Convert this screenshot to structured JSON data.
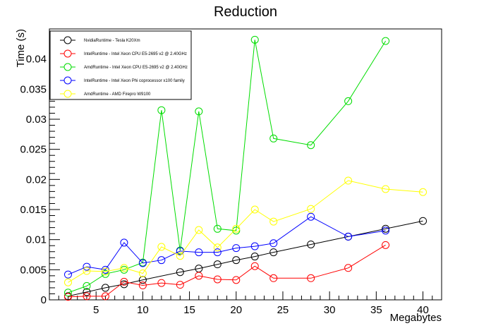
{
  "chart_data": {
    "type": "line",
    "title": "Reduction",
    "xlabel": "Megabytes",
    "ylabel": "Time (s)",
    "xlim": [
      0,
      42
    ],
    "ylim": [
      0,
      0.045
    ],
    "x_ticks": [
      5,
      10,
      15,
      20,
      25,
      30,
      35,
      40
    ],
    "x_tick_labels": [
      "5",
      "10",
      "15",
      "20",
      "25",
      "30",
      "35",
      "40"
    ],
    "y_ticks": [
      0,
      0.005,
      0.01,
      0.015,
      0.02,
      0.025,
      0.03,
      0.035,
      0.04
    ],
    "y_tick_labels": [
      "0",
      "0.005",
      "0.01",
      "0.015",
      "0.02",
      "0.025",
      "0.03",
      "0.035",
      "0.04"
    ],
    "grid": false,
    "legend_position": "top-left",
    "series": [
      {
        "name": "NvidiaRuntime - Tesla K20Xm",
        "color": "#000000",
        "points": [
          [
            2,
            0.0006
          ],
          [
            4,
            0.0013
          ],
          [
            6,
            0.002
          ],
          [
            8,
            0.0026
          ],
          [
            10,
            0.0033
          ],
          [
            14,
            0.0046
          ],
          [
            16,
            0.0052
          ],
          [
            18,
            0.0059
          ],
          [
            20,
            0.0066
          ],
          [
            22,
            0.0072
          ],
          [
            24,
            0.0079
          ],
          [
            28,
            0.0092
          ],
          [
            32,
            0.0105
          ],
          [
            36,
            0.0118
          ],
          [
            40,
            0.0131
          ]
        ]
      },
      {
        "name": "IntelRuntime - Intel Xeon CPU E5-2695 v2 @ 2.40GHz",
        "color": "#ff0000",
        "points": [
          [
            2,
            0.0005
          ],
          [
            4,
            0.0006
          ],
          [
            6,
            0.0006
          ],
          [
            8,
            0.003
          ],
          [
            10,
            0.0024
          ],
          [
            12,
            0.0028
          ],
          [
            14,
            0.0025
          ],
          [
            16,
            0.004
          ],
          [
            18,
            0.0034
          ],
          [
            20,
            0.0033
          ],
          [
            22,
            0.0056
          ],
          [
            24,
            0.0036
          ],
          [
            28,
            0.0036
          ],
          [
            32,
            0.0053
          ],
          [
            36,
            0.0091
          ]
        ]
      },
      {
        "name": "AmdRuntime - Intel Xeon CPU E5-2695 v2 @ 2.40GHz",
        "color": "#00dd00",
        "points": [
          [
            2,
            0.0012
          ],
          [
            4,
            0.0023
          ],
          [
            6,
            0.0043
          ],
          [
            8,
            0.005
          ],
          [
            10,
            0.0062
          ],
          [
            12,
            0.0315
          ],
          [
            14,
            0.0082
          ],
          [
            16,
            0.0313
          ],
          [
            18,
            0.0118
          ],
          [
            20,
            0.0115
          ],
          [
            22,
            0.0432
          ],
          [
            24,
            0.0268
          ],
          [
            28,
            0.0257
          ],
          [
            32,
            0.033
          ],
          [
            36,
            0.043
          ]
        ]
      },
      {
        "name": "IntelRuntime - Intel Xeon Phi coprocessor x100 family",
        "color": "#0000ff",
        "points": [
          [
            2,
            0.0042
          ],
          [
            4,
            0.0055
          ],
          [
            6,
            0.005
          ],
          [
            8,
            0.0095
          ],
          [
            10,
            0.0061
          ],
          [
            12,
            0.0066
          ],
          [
            14,
            0.0081
          ],
          [
            16,
            0.0079
          ],
          [
            18,
            0.0079
          ],
          [
            20,
            0.0086
          ],
          [
            22,
            0.0089
          ],
          [
            24,
            0.0094
          ],
          [
            28,
            0.0138
          ],
          [
            32,
            0.0105
          ],
          [
            36,
            0.0115
          ]
        ]
      },
      {
        "name": "AmdRuntime - AMD Firepro W9100",
        "color": "#ffff00",
        "points": [
          [
            2,
            0.0029
          ],
          [
            4,
            0.0048
          ],
          [
            6,
            0.0047
          ],
          [
            8,
            0.0053
          ],
          [
            10,
            0.0044
          ],
          [
            12,
            0.0088
          ],
          [
            14,
            0.0073
          ],
          [
            16,
            0.0116
          ],
          [
            18,
            0.0087
          ],
          [
            20,
            0.0118
          ],
          [
            22,
            0.015
          ],
          [
            24,
            0.013
          ],
          [
            28,
            0.0151
          ],
          [
            32,
            0.0198
          ],
          [
            36,
            0.0184
          ],
          [
            40,
            0.0179
          ]
        ]
      }
    ]
  }
}
